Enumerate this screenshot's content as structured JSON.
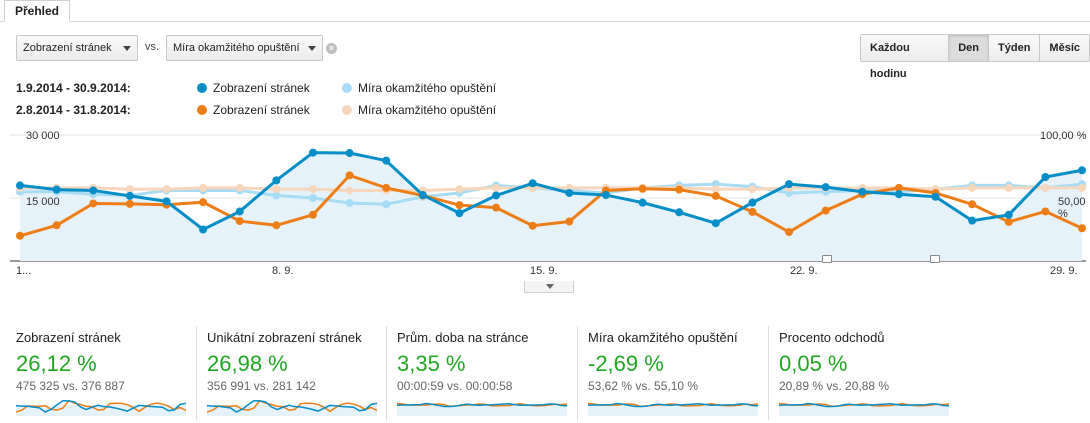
{
  "tab": {
    "label": "Přehled"
  },
  "controls": {
    "metric1": "Zobrazení stránek",
    "vs": "vs.",
    "metric2": "Míra okamžitého opuštění",
    "granularity": [
      "Každou hodinu",
      "Den",
      "Týden",
      "Měsíc"
    ],
    "granularity_active": "Den"
  },
  "legend": {
    "range1": "1.9.2014 - 30.9.2014:",
    "range2": "2.8.2014 - 31.8.2014:",
    "items": [
      {
        "label": "Zobrazení stránek",
        "color": "#058dc7"
      },
      {
        "label": "Míra okamžitého opuštění",
        "color": "#a8dcf4"
      },
      {
        "label": "Zobrazení stránek",
        "color": "#ed7e17"
      },
      {
        "label": "Míra okamžitého opuštění",
        "color": "#f6d6bc"
      }
    ]
  },
  "chart_data": {
    "type": "line",
    "y_left_labels": [
      "30 000",
      "15 000"
    ],
    "y_left_max": 30000,
    "y_right_labels": [
      "100,00 %",
      "50,00 %"
    ],
    "y_right_max": 100,
    "x_tick_labels": [
      "1...",
      "8. 9.",
      "15. 9.",
      "22. 9.",
      "29. 9."
    ],
    "series": [
      {
        "name": "Zobrazení stránek",
        "axis": "left",
        "color": "#058dc7",
        "values": [
          18000,
          17000,
          16800,
          15500,
          14200,
          7500,
          11800,
          19200,
          25800,
          25700,
          23900,
          15700,
          11400,
          15600,
          18500,
          16200,
          15700,
          13900,
          11600,
          9000,
          13900,
          18300,
          17600,
          16500,
          15900,
          15300,
          9600,
          11000,
          20000,
          21600
        ]
      },
      {
        "name": "Míra okamžitého opuštění",
        "axis": "right",
        "color": "#a8dcf4",
        "values": [
          55,
          55,
          53,
          52,
          56,
          56,
          56,
          52,
          50,
          46,
          45,
          51,
          54,
          60,
          58,
          56,
          54,
          58,
          60,
          61,
          59,
          54,
          55,
          56,
          55,
          57,
          60,
          60,
          58,
          61
        ]
      },
      {
        "name": "Zobrazení stránek",
        "axis": "left",
        "color": "#ed7e17",
        "values": [
          6000,
          8500,
          13700,
          13600,
          13400,
          14000,
          9500,
          8500,
          11000,
          20400,
          17400,
          15600,
          13300,
          12700,
          8400,
          9400,
          16800,
          17200,
          17000,
          15500,
          11700,
          6900,
          12000,
          15900,
          17400,
          16200,
          13500,
          9300,
          11800,
          7800
        ]
      },
      {
        "name": "Míra okamžitého opuštění",
        "axis": "right",
        "color": "#f6d6bc",
        "values": [
          58,
          58,
          58,
          57,
          57,
          58,
          58,
          57,
          57,
          56,
          56,
          56,
          57,
          58,
          58,
          58,
          58,
          58,
          58,
          57,
          57,
          58,
          58,
          58,
          58,
          57,
          58,
          58,
          58,
          58
        ]
      }
    ],
    "annotation_markers": 2
  },
  "metrics": [
    {
      "name": "Zobrazení stránek",
      "delta": "26,12 %",
      "compare": "475 325 vs. 376 887"
    },
    {
      "name": "Unikátní zobrazení stránek",
      "delta": "26,98 %",
      "compare": "356 991 vs. 281 142"
    },
    {
      "name": "Prům. doba na stránce",
      "delta": "3,35 %",
      "compare": "00:00:59 vs. 00:00:58"
    },
    {
      "name": "Míra okamžitého opuštění",
      "delta": "-2,69 %",
      "compare": "53,62 % vs. 55,10 %"
    },
    {
      "name": "Procento odchodů",
      "delta": "0,05 %",
      "compare": "20,89 % vs. 20,88 %"
    }
  ]
}
